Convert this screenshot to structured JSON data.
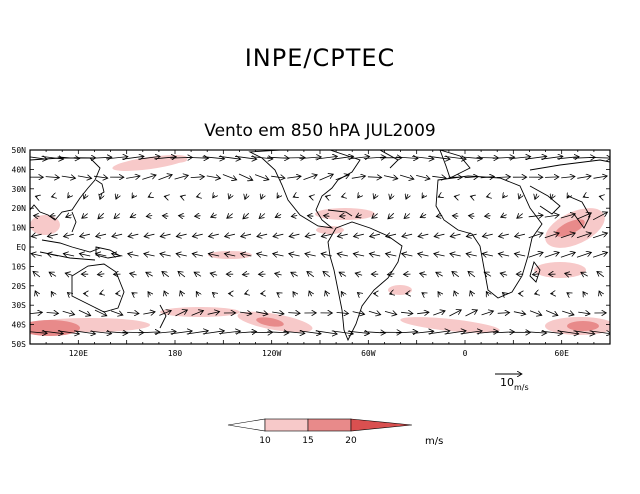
{
  "header": {
    "title": "INPE/CPTEC",
    "subtitle": "Vento em 850 hPA JUL2009"
  },
  "map": {
    "lat_labels": [
      "50N",
      "40N",
      "30N",
      "20N",
      "10N",
      "EQ",
      "10S",
      "20S",
      "30S",
      "40S",
      "50S"
    ],
    "lon_labels": [
      {
        "text": "120E",
        "lon": 120
      },
      {
        "text": "180",
        "lon": 180
      },
      {
        "text": "120W",
        "lon": 240
      },
      {
        "text": "60W",
        "lon": 300
      },
      {
        "text": "0",
        "lon": 360
      },
      {
        "text": "60E",
        "lon": 420
      }
    ],
    "lon_range": [
      90,
      450
    ],
    "lat_range": [
      -50,
      50
    ]
  },
  "reference_vector": {
    "value": "10",
    "unit": "m/s"
  },
  "legend": {
    "labels": [
      "10",
      "15",
      "20"
    ],
    "unit": "m/s",
    "colors": [
      "#ffffff",
      "#f7c9c9",
      "#e88a8a",
      "#d95050"
    ]
  }
}
